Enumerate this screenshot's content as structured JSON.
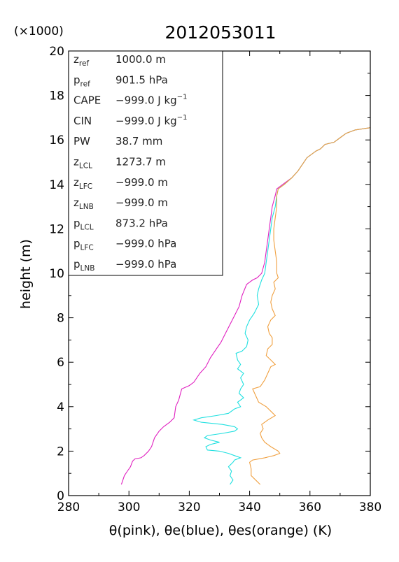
{
  "chart_data": {
    "type": "line",
    "title": "2012053011",
    "xlabel": "θ(pink), θe(blue), θes(orange)   (K)",
    "ylabel": "height (m)",
    "y_multiplier": "(×1000)",
    "xlim": [
      280,
      380
    ],
    "ylim": [
      0,
      20
    ],
    "x_ticks": [
      280,
      300,
      320,
      340,
      360,
      380
    ],
    "y_ticks": [
      0,
      2,
      4,
      6,
      8,
      10,
      12,
      14,
      16,
      18,
      20
    ],
    "stats_box": [
      {
        "sym": "z",
        "sub": "ref",
        "sup": "",
        "value": "1000.0 m"
      },
      {
        "sym": "p",
        "sub": "ref",
        "sup": "",
        "value": "901.5 hPa"
      },
      {
        "sym": "CAPE",
        "sub": "",
        "sup": "",
        "value": "−999.0 J kg",
        "value_sup": "−1"
      },
      {
        "sym": "CIN",
        "sub": "",
        "sup": "",
        "value": "−999.0 J kg",
        "value_sup": "−1"
      },
      {
        "sym": "PW",
        "sub": "",
        "sup": "",
        "value": "38.7 mm"
      },
      {
        "sym": "z",
        "sub": "LCL",
        "sup": "",
        "value": "1273.7 m"
      },
      {
        "sym": "z",
        "sub": "LFC",
        "sup": "",
        "value": "−999.0 m"
      },
      {
        "sym": "z",
        "sub": "LNB",
        "sup": "",
        "value": "−999.0 m"
      },
      {
        "sym": "p",
        "sub": "LCL",
        "sup": "",
        "value": "873.2 hPa"
      },
      {
        "sym": "p",
        "sub": "LFC",
        "sup": "",
        "value": "−999.0 hPa"
      },
      {
        "sym": "p",
        "sub": "LNB",
        "sup": "",
        "value": "−999.0 hPa"
      }
    ],
    "series": [
      {
        "name": "θ",
        "color": "#e020c0",
        "points": [
          [
            297.5,
            0.5
          ],
          [
            298.5,
            0.9
          ],
          [
            299.5,
            1.1
          ],
          [
            300.5,
            1.3
          ],
          [
            301.2,
            1.55
          ],
          [
            302,
            1.65
          ],
          [
            304,
            1.7
          ],
          [
            305,
            1.8
          ],
          [
            306.5,
            2.0
          ],
          [
            307.5,
            2.2
          ],
          [
            308.5,
            2.6
          ],
          [
            310,
            2.9
          ],
          [
            311.5,
            3.1
          ],
          [
            313.5,
            3.3
          ],
          [
            315,
            3.5
          ],
          [
            315.5,
            4.0
          ],
          [
            316.5,
            4.3
          ],
          [
            317.5,
            4.8
          ],
          [
            320,
            4.95
          ],
          [
            321.5,
            5.1
          ],
          [
            323.5,
            5.5
          ],
          [
            325.5,
            5.8
          ],
          [
            327,
            6.2
          ],
          [
            329,
            6.6
          ],
          [
            330.5,
            6.9
          ],
          [
            332,
            7.3
          ],
          [
            333.5,
            7.7
          ],
          [
            335,
            8.1
          ],
          [
            336.5,
            8.5
          ],
          [
            337.5,
            9.0
          ],
          [
            339,
            9.5
          ],
          [
            340,
            9.6
          ],
          [
            341,
            9.7
          ],
          [
            342.5,
            9.8
          ],
          [
            344,
            10.0
          ],
          [
            345,
            10.5
          ],
          [
            345.5,
            11.0
          ],
          [
            346,
            11.5
          ],
          [
            346.5,
            12.0
          ],
          [
            347,
            12.5
          ],
          [
            347.5,
            13.0
          ],
          [
            348.5,
            13.5
          ],
          [
            349,
            13.8
          ],
          [
            351,
            14.0
          ],
          [
            354,
            14.3
          ],
          [
            356,
            14.6
          ],
          [
            357.5,
            14.9
          ],
          [
            359,
            15.2
          ],
          [
            362,
            15.5
          ],
          [
            363.5,
            15.6
          ],
          [
            365,
            15.8
          ],
          [
            368,
            15.9
          ],
          [
            370,
            16.1
          ],
          [
            372,
            16.3
          ],
          [
            375,
            16.45
          ],
          [
            380,
            16.55
          ]
        ]
      },
      {
        "name": "θe",
        "color": "#20e0e0",
        "points": [
          [
            333.5,
            0.5
          ],
          [
            334.5,
            0.7
          ],
          [
            333.5,
            0.9
          ],
          [
            334,
            1.1
          ],
          [
            333,
            1.3
          ],
          [
            334.5,
            1.5
          ],
          [
            335,
            1.6
          ],
          [
            337,
            1.7
          ],
          [
            335,
            1.8
          ],
          [
            333,
            1.9
          ],
          [
            330,
            2.0
          ],
          [
            326,
            2.05
          ],
          [
            325.5,
            2.2
          ],
          [
            327,
            2.3
          ],
          [
            330,
            2.4
          ],
          [
            327,
            2.5
          ],
          [
            325,
            2.6
          ],
          [
            326,
            2.7
          ],
          [
            331,
            2.8
          ],
          [
            335,
            2.9
          ],
          [
            336,
            3.0
          ],
          [
            335,
            3.1
          ],
          [
            331,
            3.2
          ],
          [
            324,
            3.3
          ],
          [
            321.5,
            3.4
          ],
          [
            324,
            3.5
          ],
          [
            329,
            3.6
          ],
          [
            333,
            3.7
          ],
          [
            335,
            3.9
          ],
          [
            337,
            4.0
          ],
          [
            336,
            4.2
          ],
          [
            338,
            4.4
          ],
          [
            336.5,
            4.6
          ],
          [
            337,
            4.8
          ],
          [
            338,
            5.0
          ],
          [
            337,
            5.3
          ],
          [
            338,
            5.5
          ],
          [
            336,
            5.7
          ],
          [
            337,
            5.9
          ],
          [
            336,
            6.1
          ],
          [
            335.5,
            6.4
          ],
          [
            337.5,
            6.5
          ],
          [
            339,
            6.7
          ],
          [
            339.5,
            7.0
          ],
          [
            338.5,
            7.3
          ],
          [
            339,
            7.6
          ],
          [
            340,
            7.9
          ],
          [
            341.5,
            8.2
          ],
          [
            343,
            8.6
          ],
          [
            342.5,
            9.0
          ],
          [
            343,
            9.3
          ],
          [
            344,
            9.7
          ],
          [
            345,
            10.0
          ],
          [
            345.5,
            10.5
          ],
          [
            346,
            11.0
          ],
          [
            346.5,
            11.5
          ],
          [
            347,
            12.0
          ],
          [
            347.5,
            12.5
          ],
          [
            348.5,
            13.0
          ],
          [
            349,
            13.5
          ],
          [
            349.5,
            13.8
          ],
          [
            351.5,
            14.0
          ],
          [
            354,
            14.3
          ],
          [
            356,
            14.6
          ],
          [
            357.5,
            14.9
          ],
          [
            359,
            15.2
          ],
          [
            362,
            15.5
          ],
          [
            363.5,
            15.6
          ],
          [
            365,
            15.8
          ],
          [
            368,
            15.9
          ],
          [
            370,
            16.1
          ],
          [
            372,
            16.3
          ],
          [
            375,
            16.45
          ],
          [
            380,
            16.55
          ]
        ]
      },
      {
        "name": "θes",
        "color": "#f0a040",
        "points": [
          [
            343.5,
            0.5
          ],
          [
            342,
            0.7
          ],
          [
            340.5,
            0.9
          ],
          [
            340.5,
            1.2
          ],
          [
            340,
            1.5
          ],
          [
            341,
            1.6
          ],
          [
            345,
            1.7
          ],
          [
            346.5,
            1.75
          ],
          [
            348,
            1.8
          ],
          [
            350,
            1.9
          ],
          [
            349.5,
            2.0
          ],
          [
            347,
            2.2
          ],
          [
            345,
            2.4
          ],
          [
            344,
            2.6
          ],
          [
            343.5,
            2.8
          ],
          [
            344.5,
            3.0
          ],
          [
            344,
            3.2
          ],
          [
            346,
            3.4
          ],
          [
            348.5,
            3.6
          ],
          [
            347,
            3.8
          ],
          [
            345.5,
            4.0
          ],
          [
            343,
            4.2
          ],
          [
            342,
            4.5
          ],
          [
            341,
            4.8
          ],
          [
            343.5,
            4.9
          ],
          [
            345,
            5.2
          ],
          [
            346,
            5.5
          ],
          [
            347,
            5.8
          ],
          [
            348.5,
            5.9
          ],
          [
            347,
            6.1
          ],
          [
            345.5,
            6.3
          ],
          [
            346,
            6.6
          ],
          [
            347.5,
            6.8
          ],
          [
            347.5,
            7.1
          ],
          [
            346.5,
            7.3
          ],
          [
            346,
            7.6
          ],
          [
            347,
            7.9
          ],
          [
            348.5,
            8.1
          ],
          [
            347.5,
            8.4
          ],
          [
            347,
            8.7
          ],
          [
            347.5,
            9.0
          ],
          [
            348.5,
            9.3
          ],
          [
            348,
            9.6
          ],
          [
            349.5,
            9.8
          ],
          [
            349,
            10.0
          ],
          [
            349,
            10.5
          ],
          [
            348.5,
            11.0
          ],
          [
            348,
            11.5
          ],
          [
            348,
            12.0
          ],
          [
            348.5,
            12.5
          ],
          [
            349,
            13.0
          ],
          [
            349,
            13.5
          ],
          [
            349.5,
            13.8
          ],
          [
            351.5,
            14.0
          ],
          [
            354,
            14.3
          ],
          [
            356,
            14.6
          ],
          [
            357.5,
            14.9
          ],
          [
            359,
            15.2
          ],
          [
            362,
            15.5
          ],
          [
            363.5,
            15.6
          ],
          [
            365,
            15.8
          ],
          [
            368,
            15.9
          ],
          [
            370,
            16.1
          ],
          [
            372,
            16.3
          ],
          [
            375,
            16.45
          ],
          [
            380,
            16.55
          ]
        ]
      }
    ]
  }
}
